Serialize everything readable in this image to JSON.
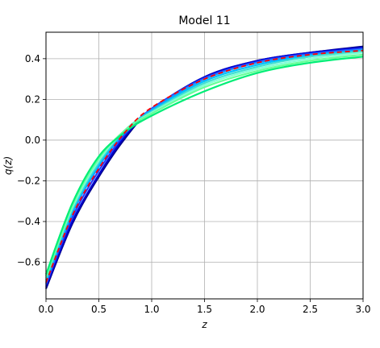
{
  "chart_data": {
    "type": "line",
    "title": "Model 11",
    "xlabel": "z",
    "ylabel": "q(z)",
    "xlim": [
      0.0,
      3.0
    ],
    "ylim": [
      -0.78,
      0.53
    ],
    "grid": true,
    "x_ticks": [
      {
        "value": 0.0,
        "label": "0.0"
      },
      {
        "value": 0.5,
        "label": "0.5"
      },
      {
        "value": 1.0,
        "label": "1.0"
      },
      {
        "value": 1.5,
        "label": "1.5"
      },
      {
        "value": 2.0,
        "label": "2.0"
      },
      {
        "value": 2.5,
        "label": "2.5"
      },
      {
        "value": 3.0,
        "label": "3.0"
      }
    ],
    "y_ticks": [
      {
        "value": -0.6,
        "label": "−0.6"
      },
      {
        "value": -0.4,
        "label": "−0.4"
      },
      {
        "value": -0.2,
        "label": "−0.2"
      },
      {
        "value": 0.0,
        "label": "0.0"
      },
      {
        "value": 0.2,
        "label": "0.2"
      },
      {
        "value": 0.4,
        "label": "0.4"
      }
    ],
    "x": [
      0.0,
      0.25,
      0.5,
      0.75,
      1.0,
      1.5,
      2.0,
      2.5,
      3.0
    ],
    "series": [
      {
        "color": "#00008b",
        "values": [
          -0.73,
          -0.41,
          -0.18,
          0.01,
          0.15,
          0.31,
          0.39,
          0.43,
          0.46
        ]
      },
      {
        "color": "#0000cd",
        "values": [
          -0.72,
          -0.4,
          -0.17,
          0.02,
          0.15,
          0.31,
          0.39,
          0.43,
          0.455
        ]
      },
      {
        "color": "#1e3cff",
        "values": [
          -0.71,
          -0.38,
          -0.15,
          0.03,
          0.155,
          0.305,
          0.385,
          0.425,
          0.45
        ]
      },
      {
        "color": "#1e90ff",
        "values": [
          -0.7,
          -0.36,
          -0.13,
          0.04,
          0.15,
          0.3,
          0.38,
          0.42,
          0.445
        ]
      },
      {
        "color": "#00bfff",
        "values": [
          -0.69,
          -0.35,
          -0.12,
          0.045,
          0.145,
          0.29,
          0.37,
          0.415,
          0.44
        ]
      },
      {
        "color": "#40e0d0",
        "values": [
          -0.68,
          -0.34,
          -0.11,
          0.05,
          0.14,
          0.28,
          0.36,
          0.41,
          0.435
        ]
      },
      {
        "color": "#7fffd4",
        "values": [
          -0.67,
          -0.33,
          -0.1,
          0.05,
          0.135,
          0.27,
          0.35,
          0.4,
          0.43
        ]
      },
      {
        "color": "#66ff99",
        "values": [
          -0.67,
          -0.32,
          -0.09,
          0.05,
          0.13,
          0.26,
          0.34,
          0.39,
          0.42
        ]
      },
      {
        "color": "#00ee76",
        "values": [
          -0.66,
          -0.31,
          -0.08,
          0.04,
          0.12,
          0.24,
          0.33,
          0.38,
          0.41
        ]
      }
    ],
    "reference": {
      "color": "#ff0000",
      "style": "dashed",
      "values": [
        -0.7,
        -0.37,
        -0.14,
        0.04,
        0.16,
        0.3,
        0.38,
        0.42,
        0.44
      ]
    }
  }
}
